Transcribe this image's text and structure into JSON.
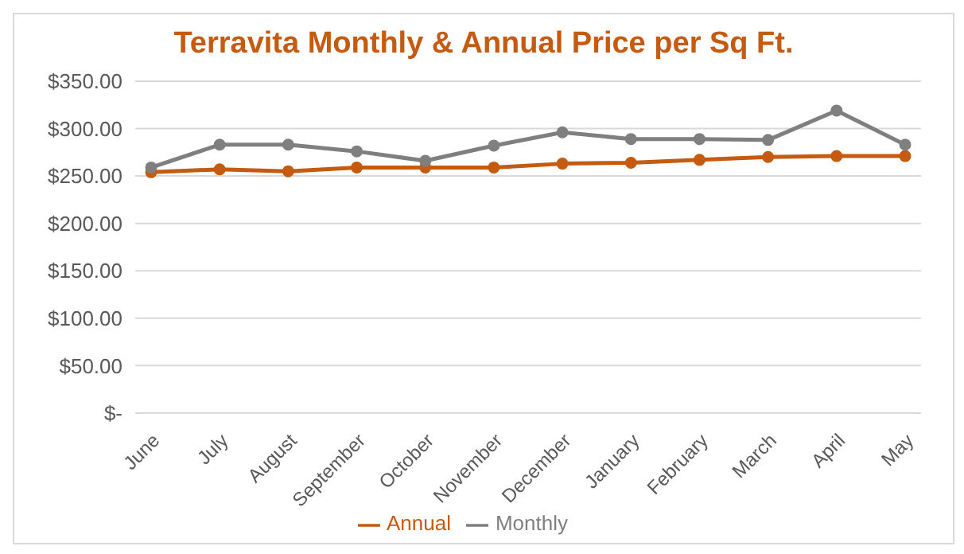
{
  "chart_data": {
    "type": "line",
    "title": "Terravita Monthly & Annual Price per Sq Ft.",
    "categories": [
      "June",
      "July",
      "August",
      "September",
      "October",
      "November",
      "December",
      "January",
      "February",
      "March",
      "April",
      "May"
    ],
    "series": [
      {
        "name": "Annual",
        "color": "#c55a11",
        "values": [
          254,
          257,
          255,
          259,
          259,
          259,
          263,
          264,
          267,
          270,
          271,
          271
        ]
      },
      {
        "name": "Monthly",
        "color": "#7f7f7f",
        "values": [
          259,
          283,
          283,
          276,
          266,
          282,
          296,
          289,
          289,
          288,
          319,
          283
        ]
      }
    ],
    "ylim": [
      0,
      350
    ],
    "yticks": [
      {
        "value": 0,
        "label": "$-"
      },
      {
        "value": 50,
        "label": "$50.00"
      },
      {
        "value": 100,
        "label": "$100.00"
      },
      {
        "value": 150,
        "label": "$150.00"
      },
      {
        "value": 200,
        "label": "$200.00"
      },
      {
        "value": 250,
        "label": "$250.00"
      },
      {
        "value": 300,
        "label": "$300.00"
      },
      {
        "value": 350,
        "label": "$350.00"
      }
    ],
    "grid": "y",
    "legend": "bottom",
    "marker": "circle",
    "line_style": "solid"
  }
}
